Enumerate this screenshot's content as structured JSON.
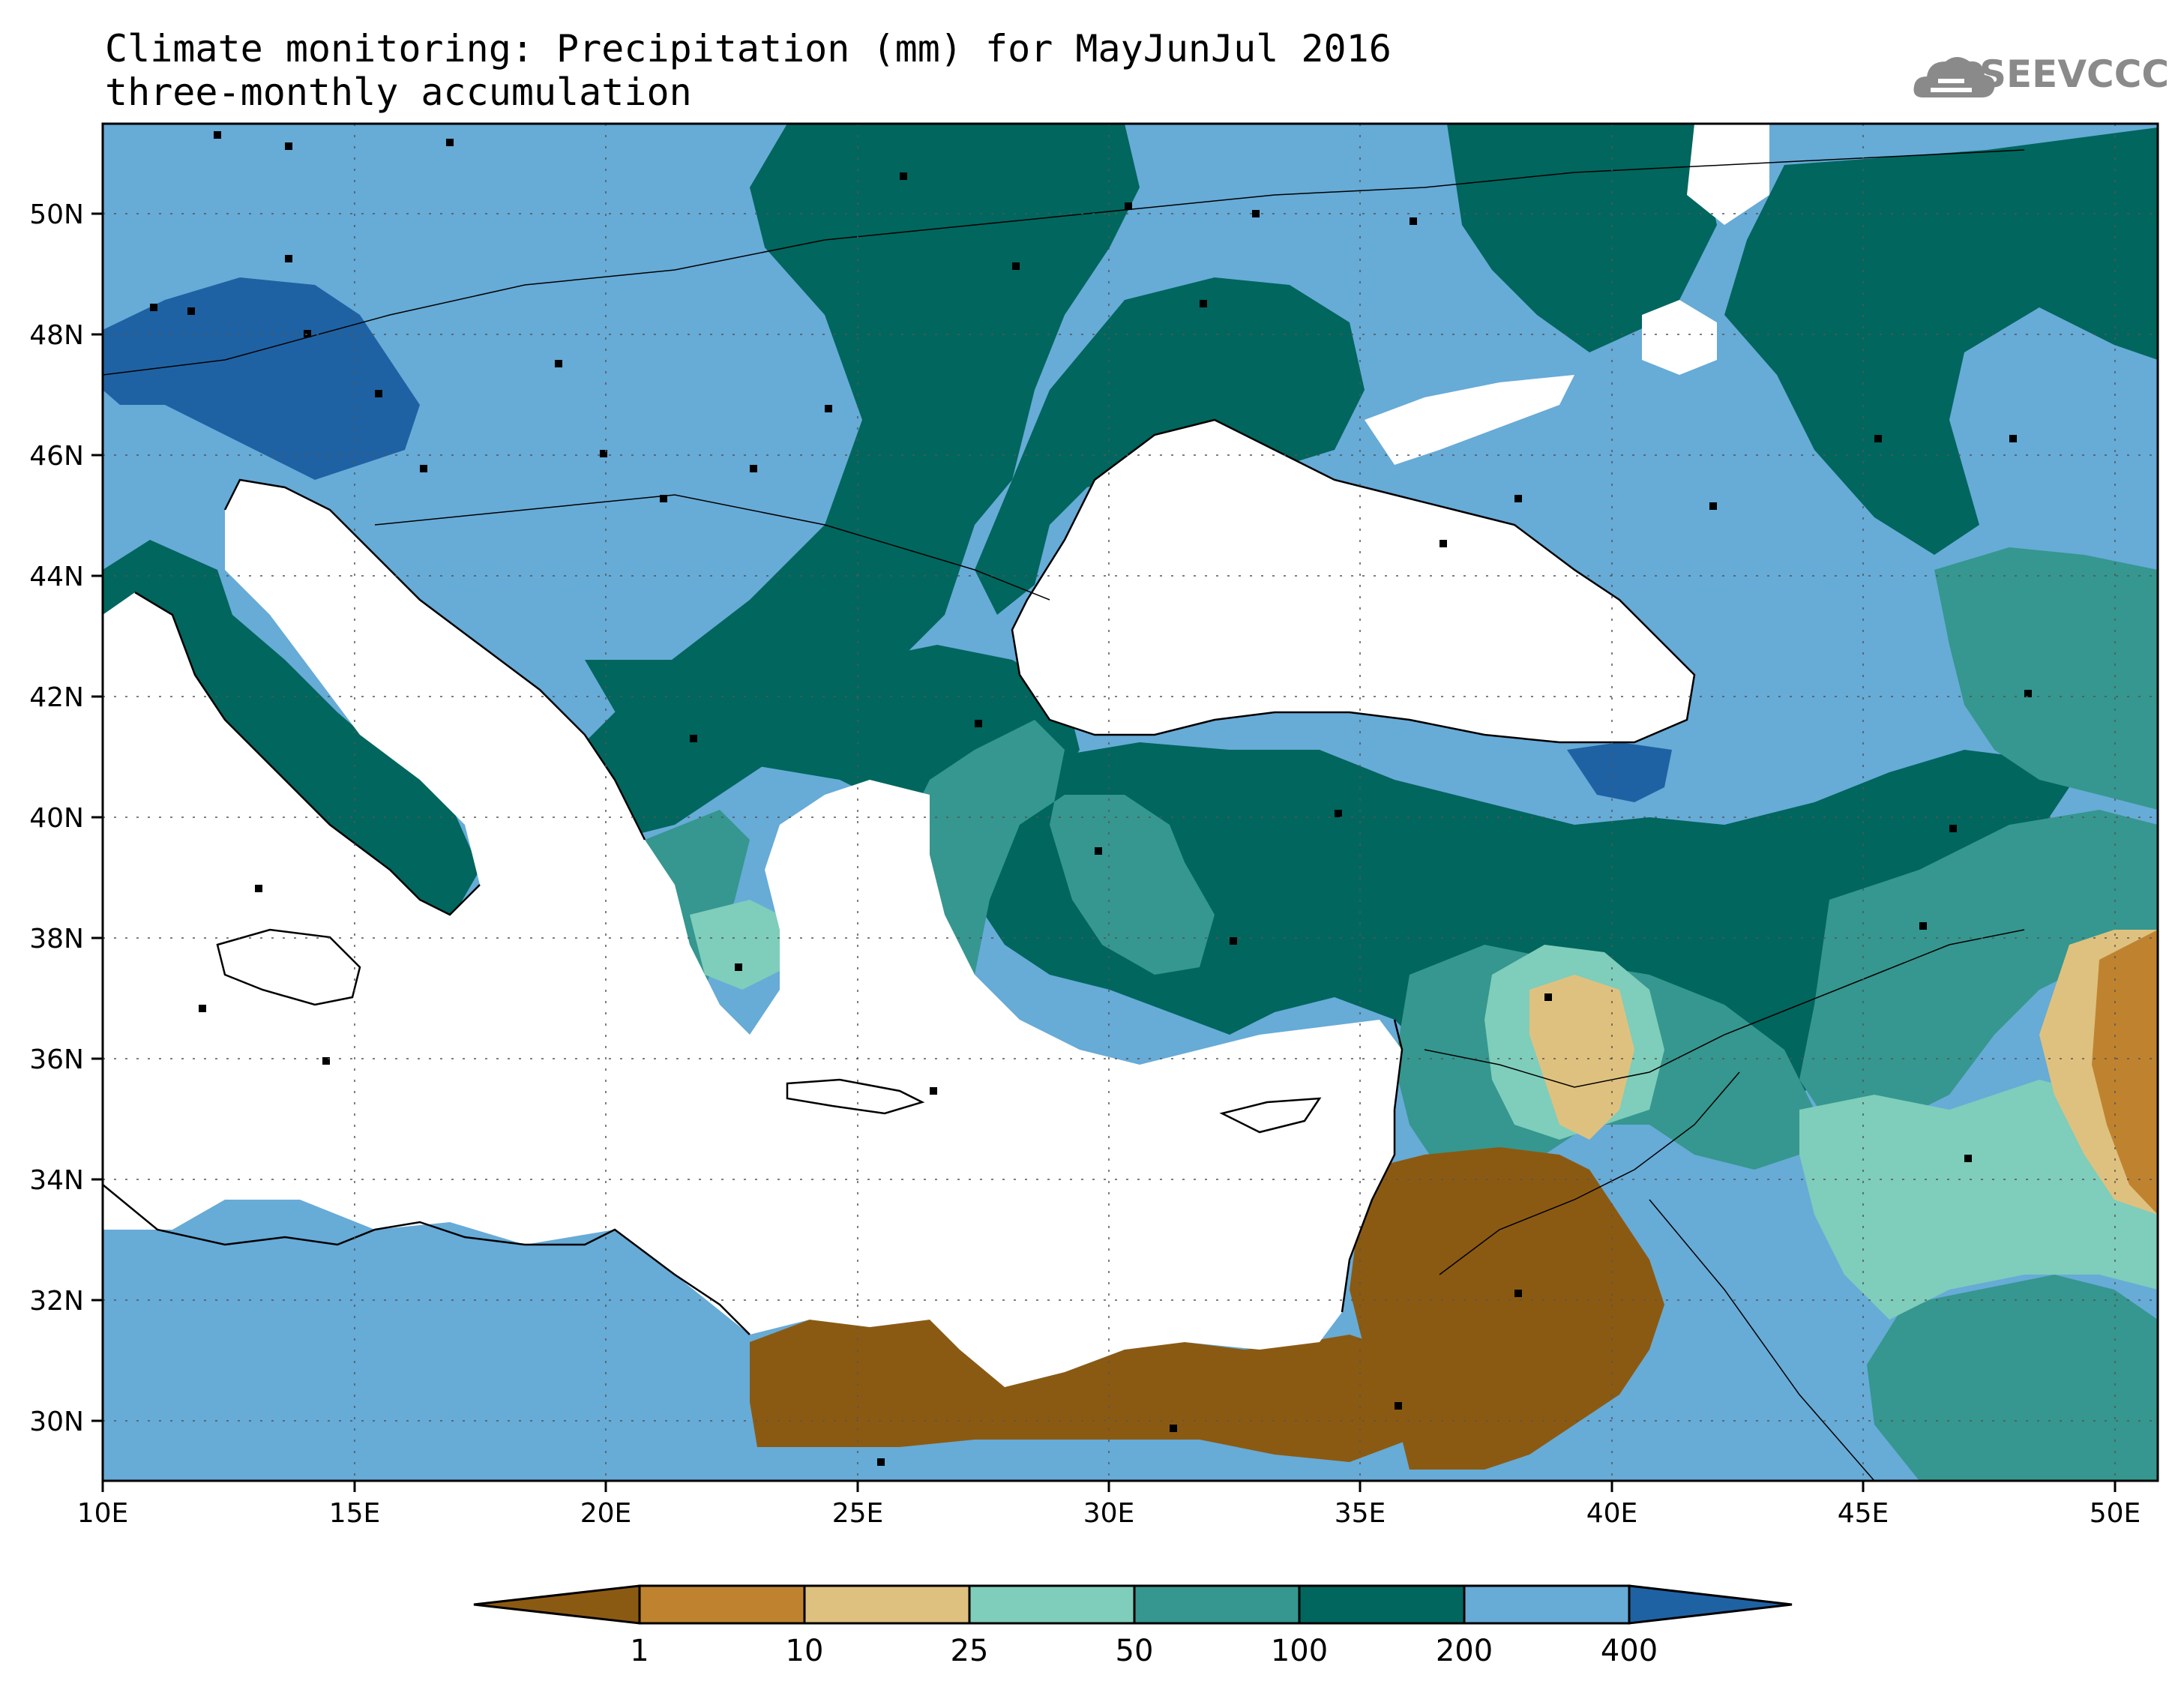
{
  "title": {
    "line1": "Climate monitoring: Precipitation (mm) for MayJunJul 2016",
    "line2": "three-monthly accumulation"
  },
  "logo": {
    "text": "SEEVCCC",
    "icon": "cloud-icon"
  },
  "axes": {
    "x_ticks": [
      "10E",
      "15E",
      "20E",
      "25E",
      "30E",
      "35E",
      "40E",
      "45E",
      "50E"
    ],
    "y_ticks": [
      "50N",
      "48N",
      "46N",
      "44N",
      "42N",
      "40N",
      "38N",
      "36N",
      "34N",
      "32N",
      "30N"
    ],
    "lon_range": [
      10,
      51
    ],
    "lat_range": [
      29,
      51.5
    ]
  },
  "colorbar": {
    "labels": [
      "1",
      "10",
      "25",
      "50",
      "100",
      "200",
      "400"
    ],
    "colors": [
      "#8b5a12",
      "#bf8330",
      "#dfc17f",
      "#7fcdbb",
      "#35978f",
      "#01665e",
      "#67abd7",
      "#1f62a3"
    ]
  },
  "colors": {
    "sea": "#ffffff",
    "dry": "#8b5a12",
    "wet": "#67abd7",
    "very_wet": "#1f62a3"
  }
}
